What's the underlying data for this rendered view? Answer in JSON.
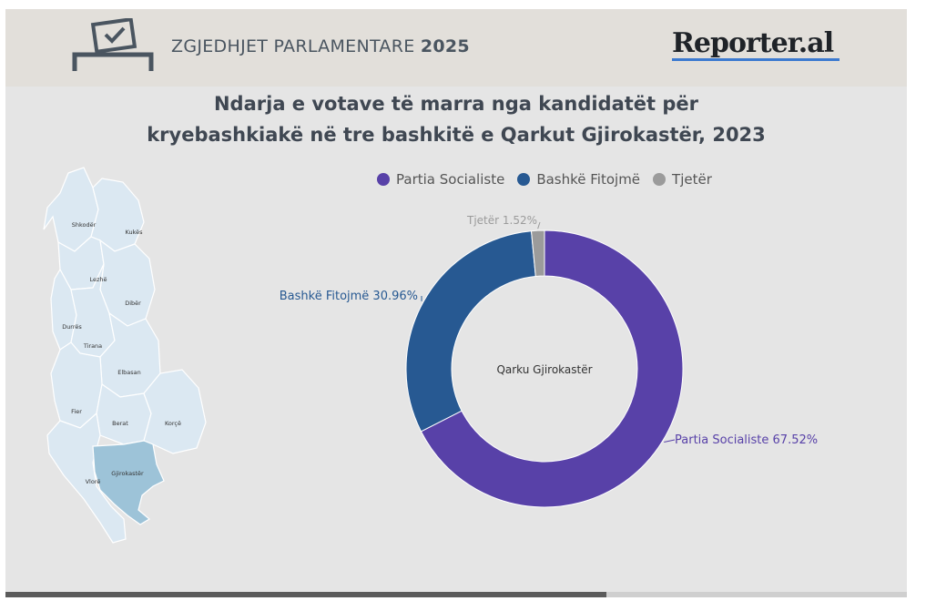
{
  "header": {
    "title_light": "ZGJEDHJET PARLAMENTARE",
    "title_bold": "2025",
    "logo": "Reporter.al",
    "icon": "ballot-box-icon"
  },
  "map": {
    "regions": [
      "Shkodër",
      "Kukës",
      "Lezhë",
      "Dibër",
      "Durrës",
      "Tirana",
      "Elbasan",
      "Fier",
      "Berat",
      "Korçë",
      "Vlorë",
      "Gjirokastër"
    ],
    "highlighted": "Gjirokastër",
    "colors": {
      "base": "#dbe8f2",
      "highlight": "#9dc3d8",
      "border": "#ffffff"
    }
  },
  "chart_data": {
    "type": "pie",
    "title": "Ndarja e votave të marra nga kandidatët për kryebashkiakë në tre bashkitë e Qarkut Gjirokastër, 2023",
    "title_lines": [
      "Ndarja e votave të marra nga kandidatët për",
      "kryebashkiakë në tre bashkitë e Qarkut Gjirokastër, 2023"
    ],
    "center_label": "Qarku Gjirokastër",
    "legend_position": "top",
    "unit": "%",
    "slices": [
      {
        "name": "Partia Socialiste",
        "value": 67.52,
        "color": "#5841a8",
        "label": "Partia Socialiste 67.52%"
      },
      {
        "name": "Bashkë Fitojmë",
        "value": 30.96,
        "color": "#275992",
        "label": "Bashkë Fitojmë 30.96%"
      },
      {
        "name": "Tjetër",
        "value": 1.52,
        "color": "#9b9b9b",
        "label": "Tjetër 1.52%"
      }
    ]
  }
}
